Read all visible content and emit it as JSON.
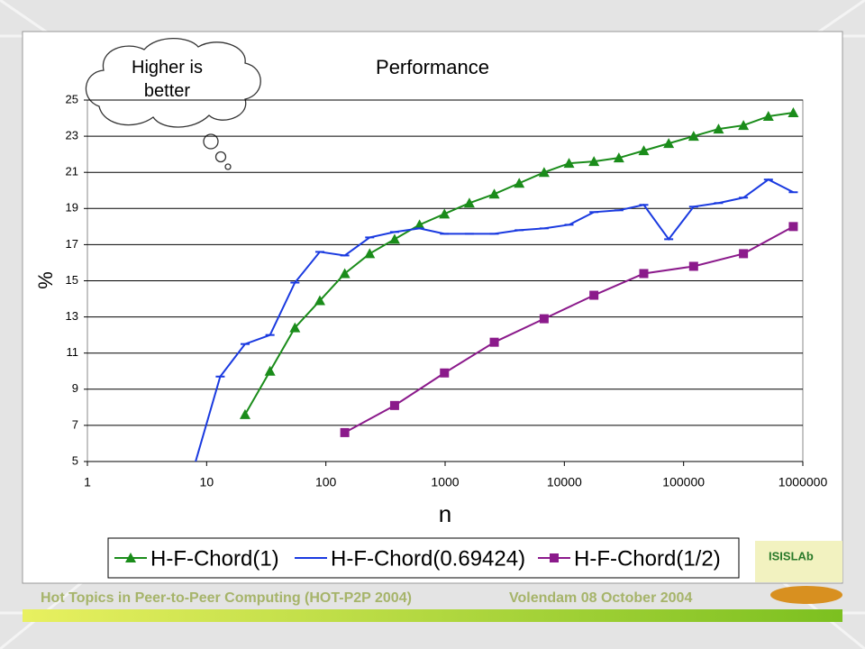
{
  "chart_data": {
    "type": "line",
    "title": "Performance",
    "x_label": "n",
    "y_label": "%",
    "x_scale": "log",
    "xlim": [
      1,
      1000000
    ],
    "xticks": [
      1,
      10,
      100,
      1000,
      10000,
      100000,
      1000000
    ],
    "ylim": [
      5,
      25
    ],
    "yticks": [
      5,
      7,
      9,
      11,
      13,
      15,
      17,
      19,
      21,
      23,
      25
    ],
    "grid": true,
    "annotation": "Higher is better",
    "series": [
      {
        "name": "H-F-Chord(1)",
        "color": "#1a8c1a",
        "marker": "triangle",
        "x": [
          21,
          34,
          55,
          89,
          144,
          233,
          377,
          610,
          987,
          1597,
          2584,
          4181,
          6765,
          10946,
          17711,
          28657,
          46368,
          75025,
          121393,
          196418,
          317811,
          514229,
          832040
        ],
        "values": [
          7.6,
          10.0,
          12.4,
          13.9,
          15.4,
          16.5,
          17.3,
          18.1,
          18.7,
          19.3,
          19.8,
          20.4,
          21.0,
          21.5,
          21.6,
          21.8,
          22.2,
          22.6,
          23.0,
          23.4,
          23.6,
          24.1,
          24.3
        ]
      },
      {
        "name": "H-F-Chord(0.69424)",
        "color": "#1a3ae0",
        "marker": "dash",
        "x": [
          8,
          13,
          21,
          34,
          55,
          89,
          144,
          233,
          377,
          610,
          987,
          1597,
          2584,
          4181,
          6765,
          10946,
          17711,
          28657,
          46368,
          75025,
          121393,
          196418,
          317811,
          514229,
          832040
        ],
        "values": [
          4.9,
          9.7,
          11.5,
          12.0,
          14.9,
          16.6,
          16.4,
          17.4,
          17.7,
          17.9,
          17.6,
          17.6,
          17.6,
          17.8,
          17.9,
          18.1,
          18.8,
          18.9,
          19.2,
          17.3,
          19.1,
          19.3,
          19.6,
          20.6,
          19.9
        ]
      },
      {
        "name": "H-F-Chord(1/2)",
        "color": "#8b1a8b",
        "marker": "square",
        "x": [
          144,
          377,
          987,
          2584,
          6765,
          17711,
          46368,
          121393,
          317811,
          832040
        ],
        "values": [
          6.6,
          8.1,
          9.9,
          11.6,
          12.9,
          14.2,
          15.4,
          15.8,
          16.5,
          18.0
        ]
      }
    ]
  },
  "footer": {
    "left": "Hot Topics in Peer-to-Peer Computing  (HOT-P2P 2004)",
    "right": "Volendam 08 October 2004"
  },
  "logo": "ISISLAb"
}
